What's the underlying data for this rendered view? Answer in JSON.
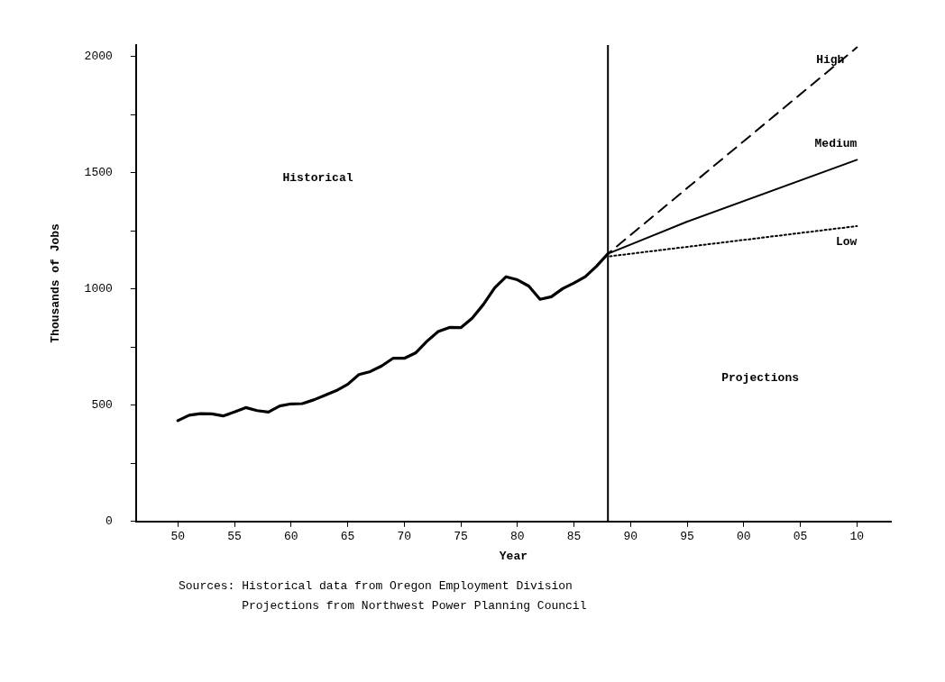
{
  "chart_data": {
    "type": "line",
    "xlabel": "Year",
    "ylabel": "Thousands of Jobs",
    "xlim": [
      1946.3,
      2013
    ],
    "xticks": [
      {
        "value": 1950,
        "label": "50"
      },
      {
        "value": 1955,
        "label": "55"
      },
      {
        "value": 1960,
        "label": "60"
      },
      {
        "value": 1965,
        "label": "65"
      },
      {
        "value": 1970,
        "label": "70"
      },
      {
        "value": 1975,
        "label": "75"
      },
      {
        "value": 1980,
        "label": "80"
      },
      {
        "value": 1985,
        "label": "85"
      },
      {
        "value": 1990,
        "label": "90"
      },
      {
        "value": 1995,
        "label": "95"
      },
      {
        "value": 2000,
        "label": "00"
      },
      {
        "value": 2005,
        "label": "05"
      },
      {
        "value": 2010,
        "label": "10"
      }
    ],
    "ylim": [
      0,
      2050
    ],
    "yticks": [
      0,
      {
        "value": 250,
        "label": null
      },
      500,
      {
        "value": 750,
        "label": null
      },
      1000,
      {
        "value": 1250,
        "label": null
      },
      1500,
      {
        "value": 1750,
        "label": null
      },
      2000
    ],
    "grid": false,
    "legend": false,
    "marker": "none",
    "series": [
      {
        "color": "#000000",
        "line_style": "solid",
        "x": [
          1950,
          1951,
          1952,
          1953,
          1954,
          1955,
          1956,
          1957,
          1958,
          1959,
          1960,
          1961,
          1962,
          1963,
          1964,
          1965,
          1966,
          1967,
          1968,
          1969,
          1970,
          1971,
          1972,
          1973,
          1974,
          1975,
          1976,
          1977,
          1978,
          1979,
          1980,
          1981,
          1982,
          1983,
          1984,
          1985,
          1986,
          1987,
          1988
        ],
        "values": [
          434,
          457,
          464,
          463,
          454,
          471,
          490,
          477,
          471,
          497,
          506,
          507,
          523,
          543,
          563,
          590,
          632,
          645,
          669,
          702,
          702,
          725,
          775,
          817,
          835,
          834,
          874,
          934,
          1006,
          1053,
          1040,
          1013,
          956,
          967,
          1002,
          1026,
          1053,
          1099,
          1152
        ]
      },
      {
        "name": "High",
        "color": "#000000",
        "line_style": "dashed",
        "x": [
          1988,
          2010
        ],
        "values": [
          1152,
          2040
        ]
      },
      {
        "name": "Medium",
        "color": "#000000",
        "line_style": "solid",
        "x": [
          1988,
          1995,
          2010
        ],
        "values": [
          1152,
          1290,
          1556
        ]
      },
      {
        "name": "Low",
        "color": "#000000",
        "line_style": "dotted",
        "x": [
          1988,
          2010
        ],
        "values": [
          1140,
          1271
        ]
      }
    ],
    "ref_lines": [
      {
        "axis": "x",
        "value": 1988,
        "color": "#000000"
      }
    ],
    "annotations": [
      "Historical",
      "Projections",
      "Sources: Historical data from Oregon Employment Division",
      "Projections from Northwest Power Planning Council"
    ]
  }
}
